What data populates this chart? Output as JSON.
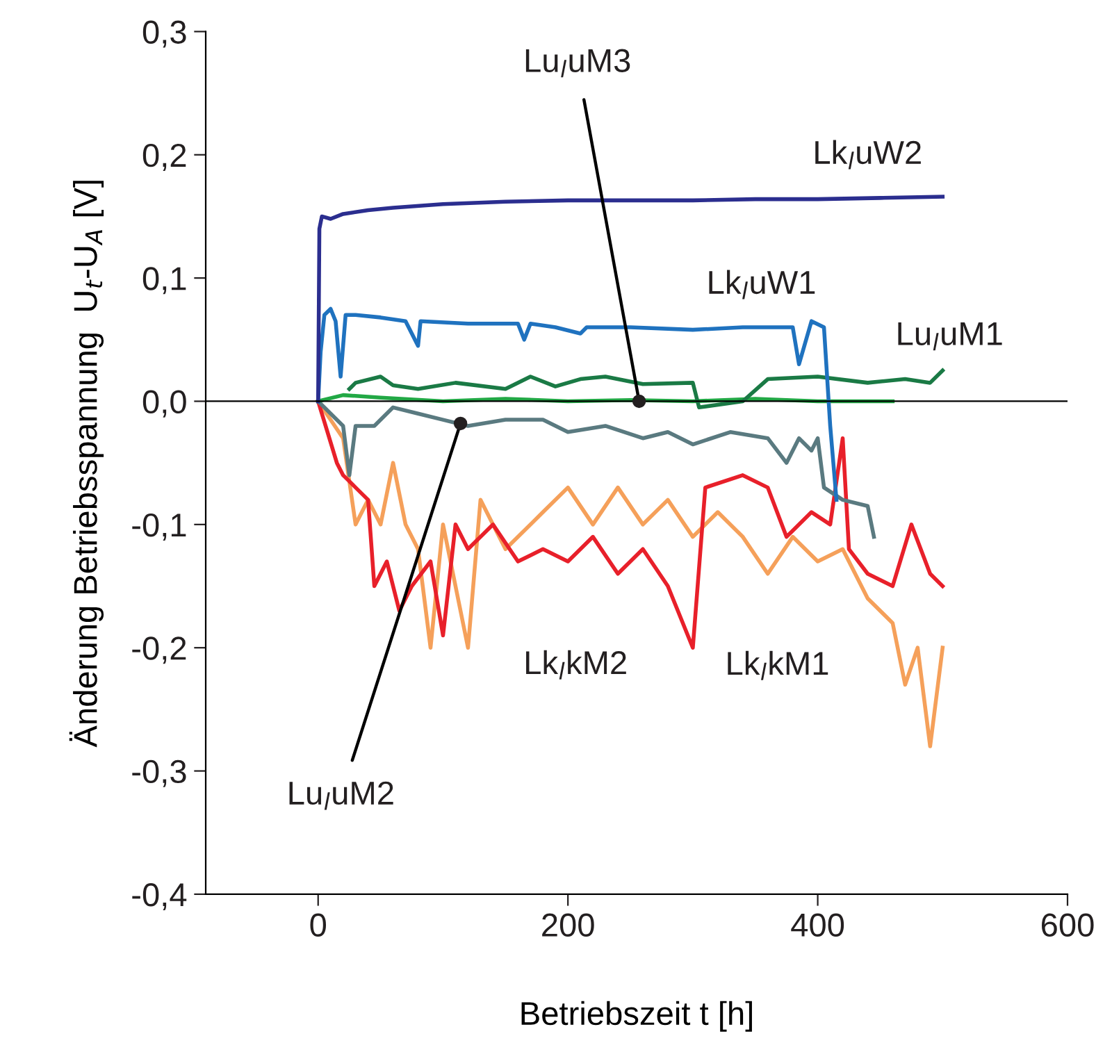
{
  "chart_data": {
    "type": "line",
    "xlabel": "Betriebszeit t [h]",
    "ylabel": "Änderung Betriebsspannung  U$_{t}$-U$_{A}$ [V]",
    "xlim": [
      -90,
      600
    ],
    "xticks": [
      0,
      200,
      400,
      600
    ],
    "ylim": [
      -0.4,
      0.3
    ],
    "yticks": [
      {
        "value": 0.3,
        "label": "0,3"
      },
      {
        "value": 0.2,
        "label": "0,2"
      },
      {
        "value": 0.1,
        "label": "0,1"
      },
      {
        "value": 0,
        "label": "0,0"
      },
      {
        "value": -0.1,
        "label": "-0,1"
      },
      {
        "value": -0.2,
        "label": "-0,2"
      },
      {
        "value": -0.3,
        "label": "-0,3"
      },
      {
        "value": -0.4,
        "label": "-0,4"
      }
    ],
    "grid": false,
    "legend": false,
    "marker": "none",
    "line_style": "solid",
    "ref_lines": [
      {
        "axis": "y",
        "value": 0,
        "color": "#000000"
      }
    ],
    "series": [
      {
        "color": "#f5a05a",
        "x": [
          0,
          20,
          30,
          40,
          50,
          60,
          70,
          80,
          90,
          100,
          120,
          130,
          150,
          180,
          200,
          220,
          240,
          260,
          280,
          300,
          320,
          340,
          360,
          380,
          400,
          420,
          440,
          460,
          470,
          480,
          490,
          500
        ],
        "values": [
          0.0,
          -0.03,
          -0.1,
          -0.08,
          -0.1,
          -0.05,
          -0.1,
          -0.12,
          -0.2,
          -0.1,
          -0.2,
          -0.08,
          -0.12,
          -0.09,
          -0.07,
          -0.1,
          -0.07,
          -0.1,
          -0.08,
          -0.11,
          -0.09,
          -0.11,
          -0.14,
          -0.11,
          -0.13,
          -0.12,
          -0.16,
          -0.18,
          -0.23,
          -0.2,
          -0.28,
          -0.2
        ]
      },
      {
        "color": "#e8202a",
        "x": [
          0,
          15,
          20,
          30,
          40,
          45,
          55,
          65,
          75,
          90,
          100,
          110,
          120,
          140,
          160,
          180,
          200,
          220,
          240,
          260,
          280,
          300,
          310,
          340,
          360,
          375,
          395,
          410,
          420,
          425,
          440,
          460,
          475,
          490,
          500
        ],
        "values": [
          0.0,
          -0.05,
          -0.06,
          -0.07,
          -0.08,
          -0.15,
          -0.13,
          -0.17,
          -0.15,
          -0.13,
          -0.19,
          -0.1,
          -0.12,
          -0.1,
          -0.13,
          -0.12,
          -0.13,
          -0.11,
          -0.14,
          -0.12,
          -0.15,
          -0.2,
          -0.07,
          -0.06,
          -0.07,
          -0.11,
          -0.09,
          -0.1,
          -0.03,
          -0.12,
          -0.14,
          -0.15,
          -0.1,
          -0.14,
          -0.15
        ]
      },
      {
        "color": "#5a7a80",
        "x": [
          0,
          20,
          25,
          30,
          45,
          60,
          80,
          100,
          120,
          150,
          180,
          200,
          230,
          260,
          280,
          300,
          330,
          360,
          375,
          385,
          395,
          400,
          405,
          420,
          440,
          445
        ],
        "values": [
          0.0,
          -0.02,
          -0.06,
          -0.02,
          -0.02,
          -0.005,
          -0.01,
          -0.015,
          -0.02,
          -0.015,
          -0.015,
          -0.025,
          -0.02,
          -0.03,
          -0.025,
          -0.035,
          -0.025,
          -0.03,
          -0.05,
          -0.03,
          -0.04,
          -0.03,
          -0.07,
          -0.08,
          -0.085,
          -0.11
        ]
      },
      {
        "color": "#22a845",
        "x": [
          0,
          20,
          50,
          100,
          150,
          200,
          250,
          300,
          350,
          400,
          460
        ],
        "values": [
          0.0,
          0.005,
          0.003,
          0.0,
          0.002,
          0.0,
          0.001,
          0.0,
          0.002,
          0.0,
          0.0
        ]
      },
      {
        "color": "#1a7a45",
        "x": [
          25,
          30,
          50,
          60,
          80,
          110,
          150,
          170,
          190,
          210,
          230,
          260,
          300,
          305,
          340,
          360,
          400,
          440,
          470,
          490,
          500
        ],
        "values": [
          0.01,
          0.015,
          0.02,
          0.013,
          0.01,
          0.015,
          0.01,
          0.02,
          0.012,
          0.018,
          0.02,
          0.014,
          0.015,
          -0.005,
          0.0,
          0.018,
          0.02,
          0.015,
          0.018,
          0.015,
          0.025
        ]
      },
      {
        "color": "#1f72bf",
        "x": [
          0,
          2,
          5,
          10,
          14,
          18,
          22,
          30,
          50,
          70,
          80,
          82,
          120,
          160,
          165,
          170,
          190,
          210,
          215,
          250,
          300,
          340,
          380,
          385,
          395,
          405,
          410,
          415
        ],
        "values": [
          0.0,
          0.04,
          0.07,
          0.075,
          0.065,
          0.02,
          0.07,
          0.07,
          0.068,
          0.065,
          0.045,
          0.065,
          0.063,
          0.063,
          0.05,
          0.063,
          0.06,
          0.055,
          0.06,
          0.06,
          0.058,
          0.06,
          0.06,
          0.03,
          0.065,
          0.06,
          -0.02,
          -0.08
        ]
      },
      {
        "color": "#2b2e8f",
        "x": [
          0,
          1,
          3,
          10,
          20,
          40,
          60,
          100,
          150,
          200,
          250,
          300,
          350,
          400,
          450,
          500
        ],
        "values": [
          0.0,
          0.14,
          0.15,
          0.148,
          0.152,
          0.155,
          0.157,
          0.16,
          0.162,
          0.163,
          0.163,
          0.163,
          0.164,
          0.164,
          0.165,
          0.166
        ]
      }
    ],
    "annotations": [
      {
        "text": "Lu$_{l}$uM3",
        "x": 257,
        "y": 0.0
      },
      {
        "text": "Lk$_{l}$uW2",
        "x": 440,
        "y": 0.165
      },
      {
        "text": "Lk$_{l}$uW1",
        "x": 355,
        "y": 0.058
      },
      {
        "text": "Lu$_{l}$uM1",
        "x": 470,
        "y": 0.018
      },
      {
        "text": "Lk$_{l}$kM2",
        "x": 200,
        "y": -0.13
      },
      {
        "text": "Lk$_{l}$kM1",
        "x": 360,
        "y": -0.14
      },
      {
        "text": "Lu$_{l}$uM2",
        "x": 114,
        "y": -0.018
      }
    ]
  }
}
